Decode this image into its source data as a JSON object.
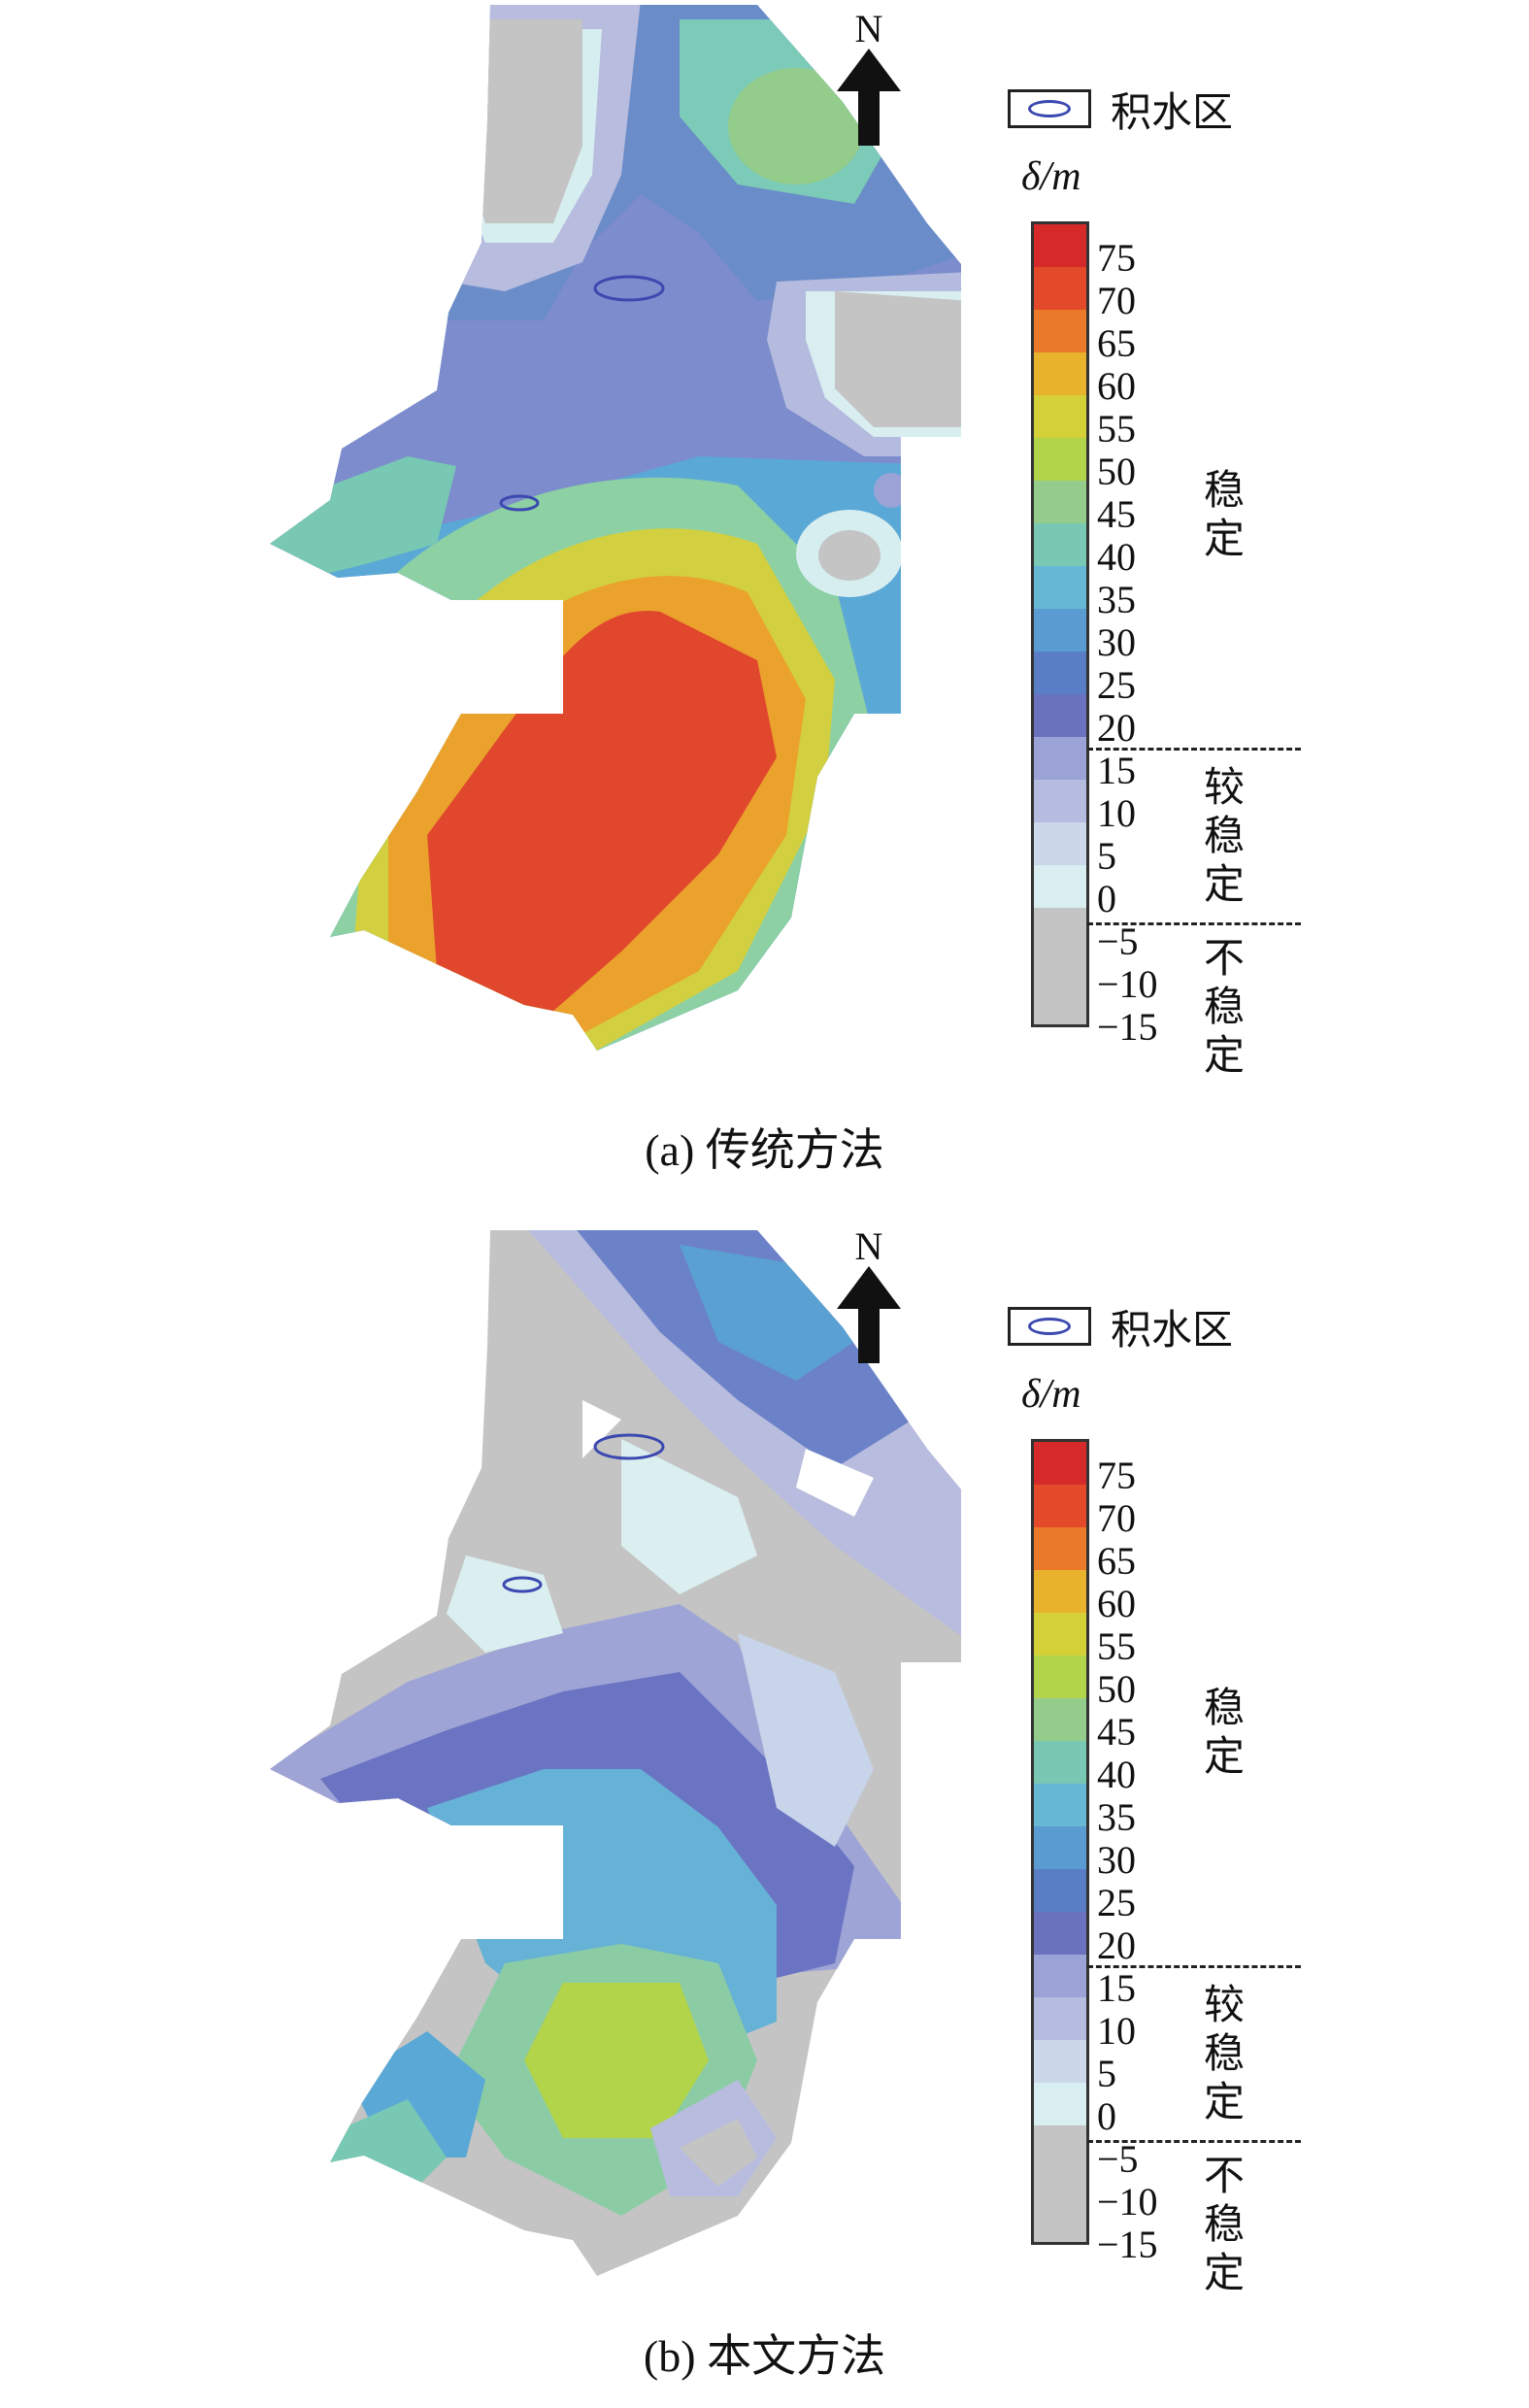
{
  "north_label": "N",
  "legend": {
    "water_label": "积水区",
    "unit": "δ/m",
    "ticks": [
      "75",
      "70",
      "65",
      "60",
      "55",
      "50",
      "45",
      "40",
      "35",
      "30",
      "25",
      "20",
      "15",
      "10",
      "5",
      "0",
      "−5",
      "−10",
      "−15"
    ],
    "categories": {
      "stable": "稳定",
      "relatively_stable": "较稳定",
      "unstable": "不稳定"
    },
    "colors": {
      "r75": "#d62a2a",
      "r70": "#e24a2a",
      "r65": "#ea7a2a",
      "r60": "#e8b22c",
      "r55": "#d4d038",
      "r50": "#b2d44a",
      "r45": "#94cc8c",
      "r40": "#78c8b4",
      "r35": "#66b8d4",
      "r30": "#5a9cd2",
      "r25": "#5a7ec6",
      "r20": "#6a72be",
      "r15": "#9aa2d6",
      "r10": "#b6bce0",
      "r5": "#ccd8ea",
      "r0": "#d8eef0",
      "neg": "#c4c4c4"
    }
  },
  "panels": {
    "a": {
      "caption_label": "(a)",
      "caption_text": "传统方法"
    },
    "b": {
      "caption_label": "(b)",
      "caption_text": "本文方法"
    }
  }
}
